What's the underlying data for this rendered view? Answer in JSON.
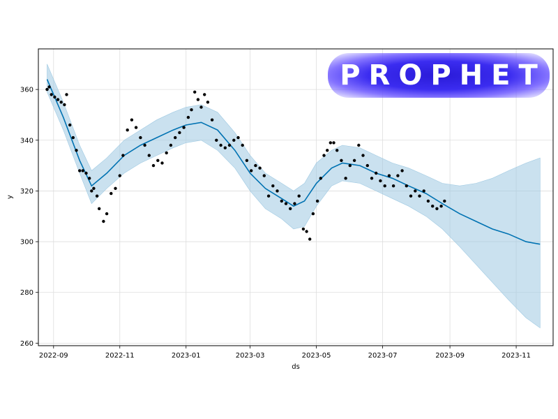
{
  "chart_data": {
    "type": "line",
    "xlabel": "ds",
    "ylabel": "y",
    "xlim": [
      "2022-08-18",
      "2023-12-05"
    ],
    "ylim": [
      259,
      376
    ],
    "x_ticks": [
      "2022-09-01",
      "2022-11-01",
      "2023-01-01",
      "2023-03-01",
      "2023-05-01",
      "2023-07-01",
      "2023-09-01",
      "2023-11-01"
    ],
    "x_tick_labels": [
      "2022-09",
      "2022-11",
      "2023-01",
      "2023-03",
      "2023-05",
      "2023-07",
      "2023-09",
      "2023-11"
    ],
    "y_ticks": [
      260,
      280,
      300,
      320,
      340,
      360
    ],
    "grid": true,
    "colors": {
      "forecast": "#0072B2",
      "interval": "#9ec9e2",
      "observed": "#000000"
    },
    "forecast": {
      "x": [
        "2022-08-26",
        "2022-09-10",
        "2022-09-25",
        "2022-10-06",
        "2022-10-20",
        "2022-11-05",
        "2022-11-20",
        "2022-12-05",
        "2022-12-20",
        "2023-01-01",
        "2023-01-15",
        "2023-01-30",
        "2023-02-15",
        "2023-03-01",
        "2023-03-15",
        "2023-03-30",
        "2023-04-10",
        "2023-04-20",
        "2023-05-01",
        "2023-05-15",
        "2023-05-25",
        "2023-06-10",
        "2023-06-25",
        "2023-07-10",
        "2023-07-25",
        "2023-08-10",
        "2023-08-25",
        "2023-09-10",
        "2023-09-25",
        "2023-10-10",
        "2023-10-25",
        "2023-11-10",
        "2023-11-23"
      ],
      "yhat": [
        364,
        349,
        332,
        322,
        327,
        334,
        338,
        341,
        344,
        346,
        347,
        344,
        336,
        327,
        321,
        317,
        314,
        316,
        323,
        329,
        331,
        330,
        327,
        325,
        322,
        319,
        315,
        311,
        308,
        305,
        303,
        300,
        299
      ],
      "lower": [
        359,
        344,
        327,
        315,
        321,
        327,
        331,
        334,
        337,
        339,
        340,
        336,
        329,
        320,
        313,
        309,
        305,
        306,
        314,
        322,
        324,
        323,
        320,
        317,
        314,
        310,
        305,
        298,
        291,
        284,
        277,
        270,
        266
      ],
      "upper": [
        370,
        355,
        338,
        328,
        333,
        340,
        344,
        348,
        351,
        353,
        354,
        351,
        343,
        334,
        327,
        323,
        320,
        323,
        331,
        336,
        338,
        337,
        334,
        331,
        329,
        326,
        323,
        322,
        323,
        325,
        328,
        331,
        333
      ]
    },
    "observed": {
      "x": [
        "2022-08-26",
        "2022-08-28",
        "2022-08-30",
        "2022-09-02",
        "2022-09-05",
        "2022-09-08",
        "2022-09-11",
        "2022-09-13",
        "2022-09-16",
        "2022-09-19",
        "2022-09-22",
        "2022-09-25",
        "2022-09-28",
        "2022-10-01",
        "2022-10-04",
        "2022-10-06",
        "2022-10-08",
        "2022-10-11",
        "2022-10-13",
        "2022-10-17",
        "2022-10-20",
        "2022-10-24",
        "2022-10-28",
        "2022-11-01",
        "2022-11-04",
        "2022-11-08",
        "2022-11-12",
        "2022-11-16",
        "2022-11-20",
        "2022-11-24",
        "2022-11-28",
        "2022-12-02",
        "2022-12-06",
        "2022-12-10",
        "2022-12-14",
        "2022-12-18",
        "2022-12-22",
        "2022-12-26",
        "2022-12-30",
        "2023-01-03",
        "2023-01-06",
        "2023-01-09",
        "2023-01-12",
        "2023-01-15",
        "2023-01-18",
        "2023-01-21",
        "2023-01-25",
        "2023-01-29",
        "2023-02-02",
        "2023-02-06",
        "2023-02-10",
        "2023-02-14",
        "2023-02-18",
        "2023-02-22",
        "2023-02-26",
        "2023-03-02",
        "2023-03-06",
        "2023-03-10",
        "2023-03-14",
        "2023-03-18",
        "2023-03-22",
        "2023-03-26",
        "2023-03-30",
        "2023-04-03",
        "2023-04-07",
        "2023-04-11",
        "2023-04-15",
        "2023-04-19",
        "2023-04-22",
        "2023-04-25",
        "2023-04-28",
        "2023-05-02",
        "2023-05-05",
        "2023-05-08",
        "2023-05-11",
        "2023-05-14",
        "2023-05-17",
        "2023-05-20",
        "2023-05-24",
        "2023-05-28",
        "2023-06-01",
        "2023-06-05",
        "2023-06-09",
        "2023-06-13",
        "2023-06-17",
        "2023-06-21",
        "2023-06-25",
        "2023-06-29",
        "2023-07-03",
        "2023-07-07",
        "2023-07-11",
        "2023-07-15",
        "2023-07-19",
        "2023-07-23",
        "2023-07-27",
        "2023-07-31",
        "2023-08-04",
        "2023-08-08",
        "2023-08-12",
        "2023-08-16",
        "2023-08-20",
        "2023-08-24",
        "2023-08-27"
      ],
      "y": [
        360,
        361,
        358,
        357,
        356,
        355,
        354,
        358,
        346,
        341,
        336,
        328,
        328,
        327,
        325,
        320,
        321,
        318,
        313,
        308,
        311,
        319,
        321,
        326,
        334,
        344,
        348,
        345,
        341,
        338,
        334,
        330,
        332,
        331,
        335,
        338,
        341,
        343,
        345,
        349,
        352,
        359,
        356,
        353,
        358,
        355,
        348,
        340,
        338,
        337,
        338,
        340,
        341,
        338,
        332,
        328,
        330,
        329,
        326,
        318,
        322,
        320,
        316,
        315,
        313,
        315,
        318,
        305,
        304,
        301,
        311,
        316,
        325,
        334,
        336,
        339,
        339,
        336,
        332,
        325,
        330,
        332,
        338,
        334,
        330,
        325,
        327,
        324,
        322,
        326,
        322,
        326,
        328,
        322,
        318,
        320,
        318,
        320,
        316,
        314,
        313,
        314,
        316
      ]
    }
  },
  "logo": {
    "text": "PROPHET"
  }
}
